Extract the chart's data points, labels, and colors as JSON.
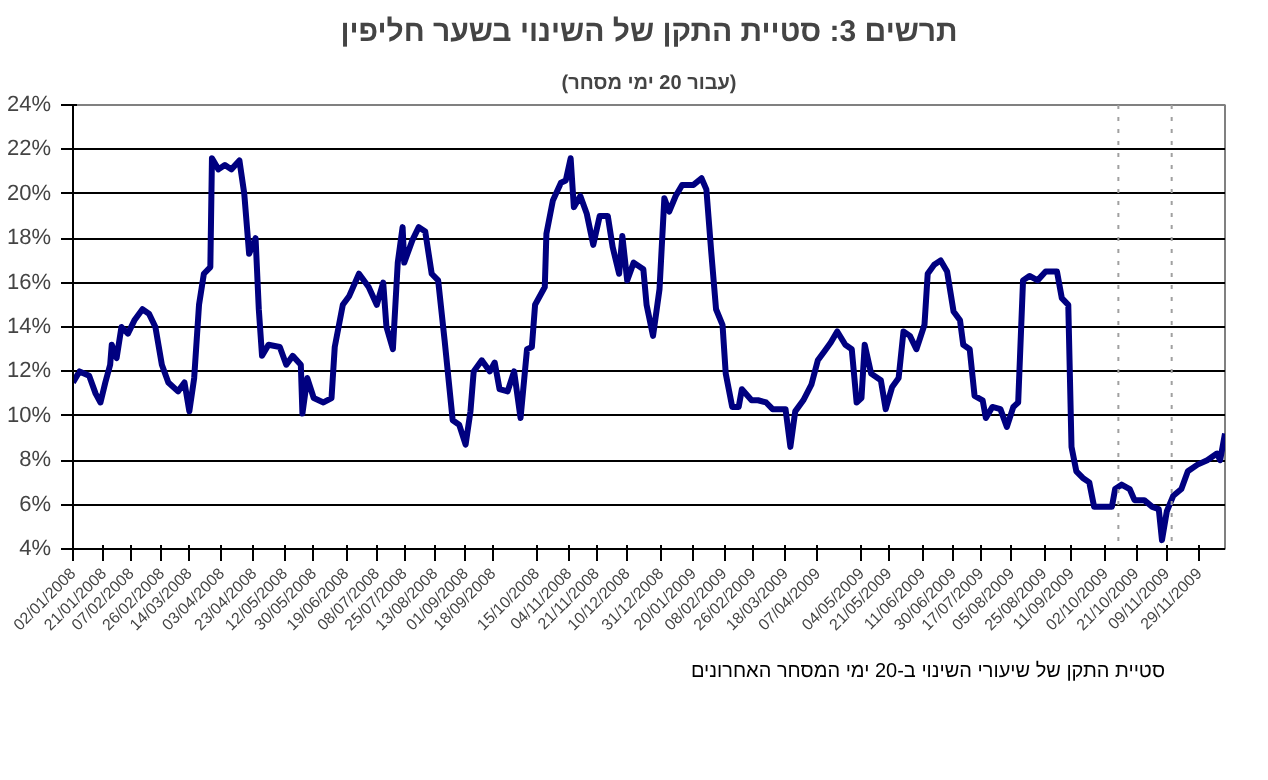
{
  "chart_data": {
    "type": "line",
    "title": "תרשים 3: סטיית התקן של השינוי בשער חליפין",
    "subtitle": "(עבור 20 ימי מסחר)",
    "x": [
      "2008-01-02",
      "2008-01-06",
      "2008-01-12",
      "2008-01-16",
      "2008-01-19",
      "2008-01-22",
      "2008-01-25",
      "2008-01-26",
      "2008-01-29",
      "2008-02-01",
      "2008-02-05",
      "2008-02-09",
      "2008-02-14",
      "2008-02-18",
      "2008-02-22",
      "2008-02-26",
      "2008-03-01",
      "2008-03-07",
      "2008-03-11",
      "2008-03-14",
      "2008-03-17",
      "2008-03-20",
      "2008-03-23",
      "2008-03-27",
      "2008-03-28",
      "2008-04-01",
      "2008-04-05",
      "2008-04-09",
      "2008-04-14",
      "2008-04-17",
      "2008-04-20",
      "2008-04-24",
      "2008-04-26",
      "2008-04-28",
      "2008-05-02",
      "2008-05-09",
      "2008-05-13",
      "2008-05-17",
      "2008-05-22",
      "2008-05-23",
      "2008-05-26",
      "2008-05-30",
      "2008-06-05",
      "2008-06-10",
      "2008-06-12",
      "2008-06-17",
      "2008-06-21",
      "2008-06-27",
      "2008-07-03",
      "2008-07-08",
      "2008-07-12",
      "2008-07-14",
      "2008-07-18",
      "2008-07-21",
      "2008-07-24",
      "2008-07-25",
      "2008-07-30",
      "2008-08-03",
      "2008-08-07",
      "2008-08-11",
      "2008-08-15",
      "2008-08-19",
      "2008-08-24",
      "2008-08-28",
      "2008-09-01",
      "2008-09-04",
      "2008-09-06",
      "2008-09-11",
      "2008-09-16",
      "2008-09-19",
      "2008-09-22",
      "2008-09-27",
      "2008-10-01",
      "2008-10-05",
      "2008-10-09",
      "2008-10-12",
      "2008-10-14",
      "2008-10-20",
      "2008-10-21",
      "2008-10-25",
      "2008-10-30",
      "2008-11-02",
      "2008-11-05",
      "2008-11-07",
      "2008-11-11",
      "2008-11-15",
      "2008-11-19",
      "2008-11-23",
      "2008-11-28",
      "2008-12-01",
      "2008-12-05",
      "2008-12-07",
      "2008-12-10",
      "2008-12-14",
      "2008-12-20",
      "2008-12-22",
      "2008-12-26",
      "2008-12-30",
      "2009-01-02",
      "2009-01-05",
      "2009-01-09",
      "2009-01-13",
      "2009-01-20",
      "2009-01-25",
      "2009-01-28",
      "2009-01-31",
      "2009-02-03",
      "2009-02-07",
      "2009-02-09",
      "2009-02-13",
      "2009-02-17",
      "2009-02-19",
      "2009-02-25",
      "2009-03-01",
      "2009-03-06",
      "2009-03-10",
      "2009-03-18",
      "2009-03-21",
      "2009-03-24",
      "2009-03-29",
      "2009-04-03",
      "2009-04-07",
      "2009-04-11",
      "2009-04-15",
      "2009-04-19",
      "2009-04-24",
      "2009-04-28",
      "2009-05-01",
      "2009-05-04",
      "2009-05-06",
      "2009-05-10",
      "2009-05-16",
      "2009-05-19",
      "2009-05-23",
      "2009-05-27",
      "2009-05-30",
      "2009-06-03",
      "2009-06-07",
      "2009-06-12",
      "2009-06-14",
      "2009-06-18",
      "2009-06-22",
      "2009-06-26",
      "2009-06-30",
      "2009-07-04",
      "2009-07-06",
      "2009-07-10",
      "2009-07-13",
      "2009-07-18",
      "2009-07-20",
      "2009-07-24",
      "2009-07-29",
      "2009-08-02",
      "2009-08-06",
      "2009-08-09",
      "2009-08-12",
      "2009-08-16",
      "2009-08-21",
      "2009-08-26",
      "2009-09-02",
      "2009-09-05",
      "2009-09-09",
      "2009-09-11",
      "2009-09-14",
      "2009-09-18",
      "2009-09-22",
      "2009-09-25",
      "2009-09-30",
      "2009-10-06",
      "2009-10-08",
      "2009-10-12",
      "2009-10-17",
      "2009-10-20",
      "2009-10-26",
      "2009-10-31",
      "2009-11-04",
      "2009-11-06",
      "2009-11-09",
      "2009-11-13",
      "2009-11-18",
      "2009-11-22",
      "2009-11-28",
      "2009-12-04",
      "2009-12-10",
      "2009-12-12",
      "2009-12-15"
    ],
    "series": [
      {
        "name": "סטיית התקן של שיעורי השינוי ב-20 ימי המסחר האחרונים",
        "color": "#000080",
        "values": [
          11.5,
          12.0,
          11.8,
          11.0,
          10.6,
          11.5,
          12.3,
          13.2,
          12.6,
          14.0,
          13.7,
          14.3,
          14.8,
          14.6,
          14.0,
          12.3,
          11.5,
          11.1,
          11.5,
          10.2,
          11.7,
          15.0,
          16.4,
          16.7,
          21.6,
          21.1,
          21.3,
          21.1,
          21.5,
          20.0,
          17.3,
          18.0,
          14.8,
          12.7,
          13.2,
          13.1,
          12.3,
          12.7,
          12.3,
          10.1,
          11.7,
          10.8,
          10.6,
          10.8,
          13.1,
          15.0,
          15.4,
          16.4,
          15.8,
          15.0,
          16.0,
          14.0,
          13.0,
          16.9,
          18.5,
          16.9,
          17.9,
          18.5,
          18.3,
          16.4,
          16.1,
          13.4,
          9.8,
          9.6,
          8.7,
          10.2,
          12.0,
          12.5,
          12.0,
          12.4,
          11.2,
          11.1,
          12.0,
          9.9,
          13.0,
          13.1,
          15.0,
          15.8,
          18.2,
          19.7,
          20.5,
          20.6,
          21.6,
          19.4,
          19.9,
          19.1,
          17.7,
          19.0,
          19.0,
          17.6,
          16.4,
          18.1,
          16.1,
          16.9,
          16.6,
          15.0,
          13.6,
          15.7,
          19.8,
          19.2,
          19.9,
          20.4,
          20.4,
          20.7,
          20.2,
          17.4,
          14.8,
          14.1,
          11.9,
          10.4,
          10.4,
          11.2,
          10.7,
          10.7,
          10.6,
          10.3,
          10.3,
          8.6,
          10.2,
          10.7,
          11.4,
          12.5,
          12.9,
          13.3,
          13.8,
          13.2,
          13.0,
          10.6,
          10.8,
          13.2,
          11.9,
          11.6,
          10.3,
          11.3,
          11.7,
          13.8,
          13.6,
          13.0,
          14.1,
          16.4,
          16.8,
          17.0,
          16.5,
          14.7,
          14.3,
          13.2,
          13.0,
          10.9,
          10.7,
          9.9,
          10.4,
          10.3,
          9.5,
          10.4,
          10.6,
          16.1,
          16.3,
          16.1,
          16.5,
          16.5,
          15.3,
          15.0,
          8.6,
          7.5,
          7.2,
          7.0,
          5.9,
          5.9,
          5.9,
          6.7,
          6.9,
          6.7,
          6.2,
          6.2,
          5.9,
          5.8,
          4.4,
          5.7,
          6.4,
          6.7,
          7.5,
          7.8,
          8.0,
          8.3,
          8.0,
          9.2
        ]
      }
    ],
    "xlim": [
      "2008-01-02",
      "2009-12-15"
    ],
    "xticks": [
      {
        "value": "2008-01-02",
        "label": "02/01/2008"
      },
      {
        "value": "2008-01-21",
        "label": "21/01/2008"
      },
      {
        "value": "2008-02-07",
        "label": "07/02/2008"
      },
      {
        "value": "2008-02-26",
        "label": "26/02/2008"
      },
      {
        "value": "2008-03-14",
        "label": "14/03/2008"
      },
      {
        "value": "2008-04-03",
        "label": "03/04/2008"
      },
      {
        "value": "2008-04-23",
        "label": "23/04/2008"
      },
      {
        "value": "2008-05-12",
        "label": "12/05/2008"
      },
      {
        "value": "2008-05-30",
        "label": "30/05/2008"
      },
      {
        "value": "2008-06-19",
        "label": "19/06/2008"
      },
      {
        "value": "2008-07-08",
        "label": "08/07/2008"
      },
      {
        "value": "2008-07-25",
        "label": "25/07/2008"
      },
      {
        "value": "2008-08-13",
        "label": "13/08/2008"
      },
      {
        "value": "2008-09-01",
        "label": "01/09/2008"
      },
      {
        "value": "2008-09-18",
        "label": "18/09/2008"
      },
      {
        "value": "2008-10-15",
        "label": "15/10/2008"
      },
      {
        "value": "2008-11-04",
        "label": "04/11/2008"
      },
      {
        "value": "2008-11-21",
        "label": "21/11/2008"
      },
      {
        "value": "2008-12-10",
        "label": "10/12/2008"
      },
      {
        "value": "2008-12-31",
        "label": "31/12/2008"
      },
      {
        "value": "2009-01-20",
        "label": "20/01/2009"
      },
      {
        "value": "2009-02-08",
        "label": "08/02/2009"
      },
      {
        "value": "2009-02-26",
        "label": "26/02/2009"
      },
      {
        "value": "2009-03-18",
        "label": "18/03/2009"
      },
      {
        "value": "2009-04-07",
        "label": "07/04/2009"
      },
      {
        "value": "2009-05-04",
        "label": "04/05/2009"
      },
      {
        "value": "2009-05-21",
        "label": "21/05/2009"
      },
      {
        "value": "2009-06-11",
        "label": "11/06/2009"
      },
      {
        "value": "2009-06-30",
        "label": "30/06/2009"
      },
      {
        "value": "2009-07-17",
        "label": "17/07/2009"
      },
      {
        "value": "2009-08-05",
        "label": "05/08/2009"
      },
      {
        "value": "2009-08-25",
        "label": "25/08/2009"
      },
      {
        "value": "2009-09-11",
        "label": "11/09/2009"
      },
      {
        "value": "2009-10-02",
        "label": "02/10/2009"
      },
      {
        "value": "2009-10-21",
        "label": "21/10/2009"
      },
      {
        "value": "2009-11-09",
        "label": "09/11/2009"
      },
      {
        "value": "2009-11-29",
        "label": "29/11/2009"
      }
    ],
    "ylim": [
      4,
      24
    ],
    "yticks": [
      {
        "value": 4,
        "label": "4%"
      },
      {
        "value": 6,
        "label": "6%"
      },
      {
        "value": 8,
        "label": "8%"
      },
      {
        "value": 10,
        "label": "10%"
      },
      {
        "value": 12,
        "label": "12%"
      },
      {
        "value": 14,
        "label": "14%"
      },
      {
        "value": 16,
        "label": "16%"
      },
      {
        "value": 18,
        "label": "18%"
      },
      {
        "value": 20,
        "label": "20%"
      },
      {
        "value": 22,
        "label": "22%"
      },
      {
        "value": 24,
        "label": "24%"
      }
    ],
    "ref_lines": [
      {
        "axis": "x",
        "value": "2009-10-10",
        "color": "#a0a0a0",
        "line_style": "dotted"
      },
      {
        "axis": "x",
        "value": "2009-11-12",
        "color": "#a0a0a0",
        "line_style": "dotted"
      }
    ],
    "grid": "y",
    "line_style": "solid"
  }
}
